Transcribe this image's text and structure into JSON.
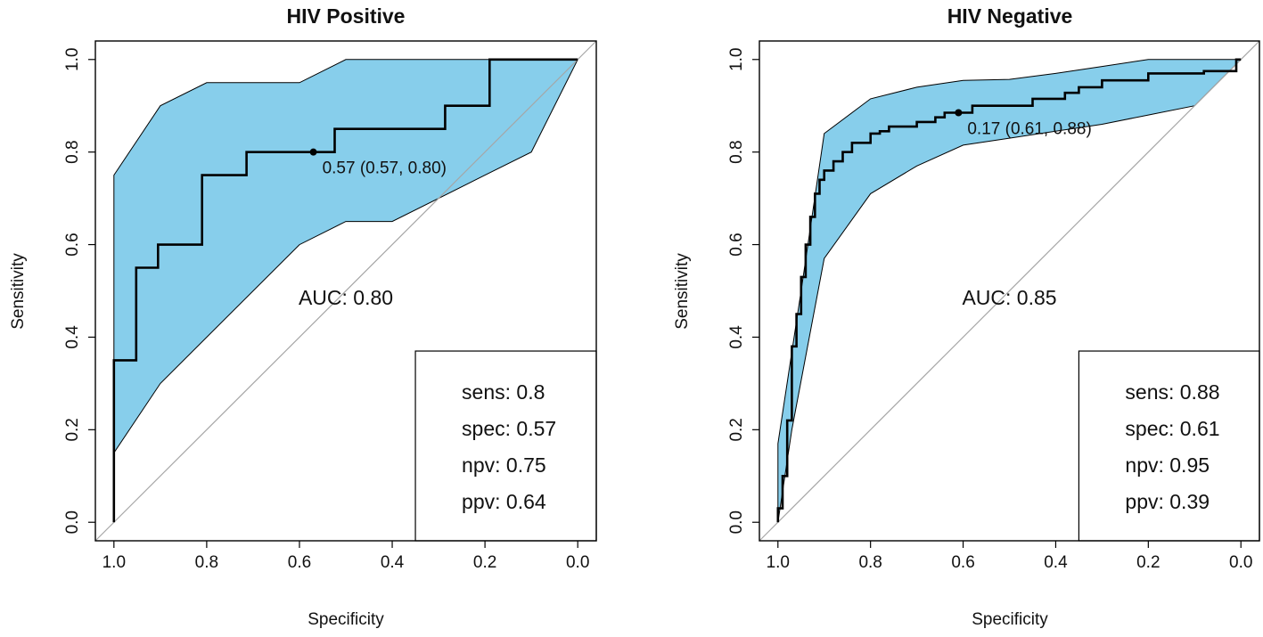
{
  "chart_data": [
    {
      "type": "line",
      "title": "HIV Positive",
      "xlabel": "Specificity",
      "ylabel": "Sensitivity",
      "xlim": [
        1.04,
        -0.04
      ],
      "ylim": [
        -0.04,
        1.04
      ],
      "x_ticks": [
        "1.0",
        "0.8",
        "0.6",
        "0.4",
        "0.2",
        "0.0"
      ],
      "y_ticks": [
        "0.0",
        "0.2",
        "0.4",
        "0.6",
        "0.8",
        "1.0"
      ],
      "diagonal_color": "#a6a6a6",
      "ci_fill_color": "#87ceeb",
      "roc_color": "#000000",
      "ci_upper": {
        "specificity": [
          1.0,
          1.0,
          0.9,
          0.8,
          0.6,
          0.5,
          0.0
        ],
        "sensitivity": [
          0.15,
          0.75,
          0.9,
          0.95,
          0.95,
          1.0,
          1.0
        ]
      },
      "ci_lower": {
        "specificity": [
          1.0,
          0.9,
          0.6,
          0.5,
          0.4,
          0.2,
          0.1,
          0.0
        ],
        "sensitivity": [
          0.15,
          0.3,
          0.6,
          0.65,
          0.65,
          0.75,
          0.8,
          1.0
        ]
      },
      "roc": {
        "specificity": [
          1.0,
          1.0,
          0.952,
          0.952,
          0.905,
          0.905,
          0.81,
          0.81,
          0.714,
          0.714,
          0.524,
          0.524,
          0.286,
          0.286,
          0.19,
          0.19,
          0.0
        ],
        "sensitivity": [
          0.0,
          0.35,
          0.35,
          0.55,
          0.55,
          0.6,
          0.6,
          0.75,
          0.75,
          0.8,
          0.8,
          0.85,
          0.85,
          0.9,
          0.9,
          1.0,
          1.0
        ]
      },
      "threshold_point": {
        "specificity": 0.57,
        "sensitivity": 0.8
      },
      "threshold_label": "0.57 (0.57, 0.80)",
      "auc_label": "AUC: 0.80",
      "stats": [
        "sens: 0.8",
        "spec: 0.57",
        "npv: 0.75",
        "ppv: 0.64"
      ]
    },
    {
      "type": "line",
      "title": "HIV Negative",
      "xlabel": "Specificity",
      "ylabel": "Sensitivity",
      "xlim": [
        1.04,
        -0.04
      ],
      "ylim": [
        -0.04,
        1.04
      ],
      "x_ticks": [
        "1.0",
        "0.8",
        "0.6",
        "0.4",
        "0.2",
        "0.0"
      ],
      "y_ticks": [
        "0.0",
        "0.2",
        "0.4",
        "0.6",
        "0.8",
        "1.0"
      ],
      "diagonal_color": "#a6a6a6",
      "ci_fill_color": "#87ceeb",
      "roc_color": "#000000",
      "ci_upper": {
        "specificity": [
          1.0,
          1.0,
          0.95,
          0.9,
          0.8,
          0.7,
          0.6,
          0.5,
          0.4,
          0.3,
          0.2,
          0.1,
          0.0
        ],
        "sensitivity": [
          0.0,
          0.17,
          0.5,
          0.84,
          0.915,
          0.94,
          0.955,
          0.957,
          0.97,
          0.985,
          1.0,
          1.0,
          1.0
        ]
      },
      "ci_lower": {
        "specificity": [
          1.0,
          0.97,
          0.9,
          0.8,
          0.7,
          0.6,
          0.5,
          0.4,
          0.3,
          0.2,
          0.1,
          0.0
        ],
        "sensitivity": [
          0.0,
          0.2,
          0.57,
          0.71,
          0.77,
          0.815,
          0.83,
          0.845,
          0.86,
          0.88,
          0.9,
          1.0
        ]
      },
      "roc": {
        "specificity": [
          1.0,
          1.0,
          0.99,
          0.99,
          0.98,
          0.98,
          0.97,
          0.97,
          0.96,
          0.96,
          0.95,
          0.95,
          0.94,
          0.94,
          0.93,
          0.93,
          0.92,
          0.92,
          0.91,
          0.91,
          0.9,
          0.9,
          0.88,
          0.88,
          0.86,
          0.86,
          0.84,
          0.84,
          0.8,
          0.8,
          0.78,
          0.78,
          0.76,
          0.76,
          0.7,
          0.7,
          0.66,
          0.66,
          0.64,
          0.64,
          0.61,
          0.61,
          0.58,
          0.58,
          0.45,
          0.45,
          0.38,
          0.38,
          0.35,
          0.35,
          0.3,
          0.3,
          0.2,
          0.2,
          0.08,
          0.08,
          0.01,
          0.01,
          0.0
        ],
        "sensitivity": [
          0.0,
          0.03,
          0.03,
          0.1,
          0.1,
          0.22,
          0.22,
          0.38,
          0.38,
          0.45,
          0.45,
          0.53,
          0.53,
          0.6,
          0.6,
          0.66,
          0.66,
          0.71,
          0.71,
          0.74,
          0.74,
          0.76,
          0.76,
          0.78,
          0.78,
          0.8,
          0.8,
          0.82,
          0.82,
          0.84,
          0.84,
          0.845,
          0.845,
          0.855,
          0.855,
          0.865,
          0.865,
          0.875,
          0.875,
          0.885,
          0.885,
          0.885,
          0.885,
          0.9,
          0.9,
          0.915,
          0.915,
          0.928,
          0.928,
          0.94,
          0.94,
          0.955,
          0.955,
          0.97,
          0.97,
          0.975,
          0.975,
          1.0,
          1.0
        ]
      },
      "threshold_point": {
        "specificity": 0.61,
        "sensitivity": 0.885
      },
      "threshold_label": "0.17 (0.61, 0.88)",
      "auc_label": "AUC: 0.85",
      "stats": [
        "sens: 0.88",
        "spec: 0.61",
        "npv: 0.95",
        "ppv: 0.39"
      ]
    }
  ]
}
